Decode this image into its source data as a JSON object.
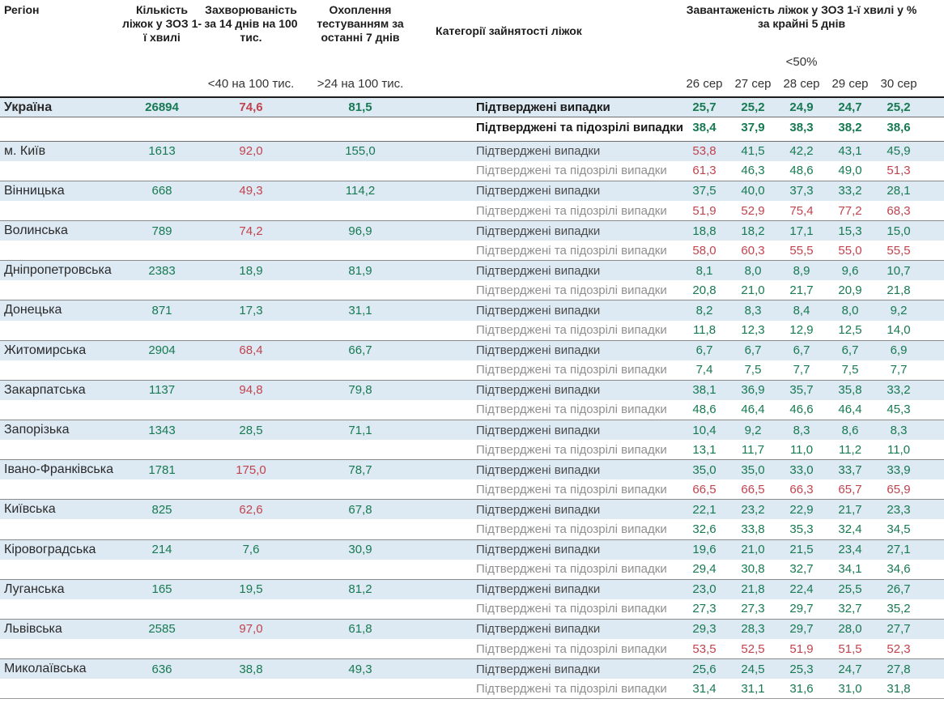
{
  "colors": {
    "good": "#177a52",
    "bad": "#c2434e",
    "row_highlight": "#dde9f3"
  },
  "chart_data": {
    "type": "table",
    "title": "Завантаженість ліжок у ЗОЗ 1-ї хвилі",
    "header": {
      "region": "Регіон",
      "beds": "Кількість ліжок у ЗОЗ 1-ї хвилі",
      "incidence": "Захворюваність за 14 днів на 100 тис.",
      "testing": "Охоплення тестуванням за останні 7 днів",
      "category": "Категорії зайнятості ліжок",
      "occupancy": "Завантаженість ліжок у ЗОЗ 1-ї хвилі у % за крайні 5 днів"
    },
    "thresholds": {
      "incidence": "<40 на 100 тис.",
      "testing": ">24 на 100 тис.",
      "occupancy": "<50%",
      "incidence_red_at": 40,
      "testing_green_above": 24,
      "occupancy_red_at": 50
    },
    "dates": [
      "26 сер",
      "27 сер",
      "28 сер",
      "29 сер",
      "30 сер"
    ],
    "category_labels": {
      "confirmed": "Підтверджені випадки",
      "confirmed_suspected": "Підтверджені та підозрілі випадки"
    },
    "rows": [
      {
        "region": "Україна",
        "is_total": true,
        "beds": "26894",
        "incidence": "74,6",
        "testing": "81,5",
        "confirmed": [
          "25,7",
          "25,2",
          "24,9",
          "24,7",
          "25,2"
        ],
        "confirmed_suspected": [
          "38,4",
          "37,9",
          "38,3",
          "38,2",
          "38,6"
        ]
      },
      {
        "region": "м. Київ",
        "is_total": false,
        "beds": "1613",
        "incidence": "92,0",
        "testing": "155,0",
        "confirmed": [
          "53,8",
          "41,5",
          "42,2",
          "43,1",
          "45,9"
        ],
        "confirmed_suspected": [
          "61,3",
          "46,3",
          "48,6",
          "49,0",
          "51,3"
        ]
      },
      {
        "region": "Вінницька",
        "is_total": false,
        "beds": "668",
        "incidence": "49,3",
        "testing": "114,2",
        "confirmed": [
          "37,5",
          "40,0",
          "37,3",
          "33,2",
          "28,1"
        ],
        "confirmed_suspected": [
          "51,9",
          "52,9",
          "75,4",
          "77,2",
          "68,3"
        ]
      },
      {
        "region": "Волинська",
        "is_total": false,
        "beds": "789",
        "incidence": "74,2",
        "testing": "96,9",
        "confirmed": [
          "18,8",
          "18,2",
          "17,1",
          "15,3",
          "15,0"
        ],
        "confirmed_suspected": [
          "58,0",
          "60,3",
          "55,5",
          "55,0",
          "55,5"
        ]
      },
      {
        "region": "Дніпропетровська",
        "is_total": false,
        "beds": "2383",
        "incidence": "18,9",
        "testing": "81,9",
        "confirmed": [
          "8,1",
          "8,0",
          "8,9",
          "9,6",
          "10,7"
        ],
        "confirmed_suspected": [
          "20,8",
          "21,0",
          "21,7",
          "20,9",
          "21,8"
        ]
      },
      {
        "region": "Донецька",
        "is_total": false,
        "beds": "871",
        "incidence": "17,3",
        "testing": "31,1",
        "confirmed": [
          "8,2",
          "8,3",
          "8,4",
          "8,0",
          "9,2"
        ],
        "confirmed_suspected": [
          "11,8",
          "12,3",
          "12,9",
          "12,5",
          "14,0"
        ]
      },
      {
        "region": "Житомирська",
        "is_total": false,
        "beds": "2904",
        "incidence": "68,4",
        "testing": "66,7",
        "confirmed": [
          "6,7",
          "6,7",
          "6,7",
          "6,7",
          "6,9"
        ],
        "confirmed_suspected": [
          "7,4",
          "7,5",
          "7,7",
          "7,5",
          "7,7"
        ]
      },
      {
        "region": "Закарпатська",
        "is_total": false,
        "beds": "1137",
        "incidence": "94,8",
        "testing": "79,8",
        "confirmed": [
          "38,1",
          "36,9",
          "35,7",
          "35,8",
          "33,2"
        ],
        "confirmed_suspected": [
          "48,6",
          "46,4",
          "46,6",
          "46,4",
          "45,3"
        ]
      },
      {
        "region": "Запорізька",
        "is_total": false,
        "beds": "1343",
        "incidence": "28,5",
        "testing": "71,1",
        "confirmed": [
          "10,4",
          "9,2",
          "8,3",
          "8,6",
          "8,3"
        ],
        "confirmed_suspected": [
          "13,1",
          "11,7",
          "11,0",
          "11,2",
          "11,0"
        ]
      },
      {
        "region": "Івано-Франківська",
        "is_total": false,
        "beds": "1781",
        "incidence": "175,0",
        "testing": "78,7",
        "confirmed": [
          "35,0",
          "35,0",
          "33,0",
          "33,7",
          "33,9"
        ],
        "confirmed_suspected": [
          "66,5",
          "66,5",
          "66,3",
          "65,7",
          "65,9"
        ]
      },
      {
        "region": "Київська",
        "is_total": false,
        "beds": "825",
        "incidence": "62,6",
        "testing": "67,8",
        "confirmed": [
          "22,1",
          "23,2",
          "22,9",
          "21,7",
          "23,3"
        ],
        "confirmed_suspected": [
          "32,6",
          "33,8",
          "35,3",
          "32,4",
          "34,5"
        ]
      },
      {
        "region": "Кіровоградська",
        "is_total": false,
        "beds": "214",
        "incidence": "7,6",
        "testing": "30,9",
        "confirmed": [
          "19,6",
          "21,0",
          "21,5",
          "23,4",
          "27,1"
        ],
        "confirmed_suspected": [
          "29,4",
          "30,8",
          "32,7",
          "34,1",
          "34,6"
        ]
      },
      {
        "region": "Луганська",
        "is_total": false,
        "beds": "165",
        "incidence": "19,5",
        "testing": "81,2",
        "confirmed": [
          "23,0",
          "21,8",
          "22,4",
          "25,5",
          "26,7"
        ],
        "confirmed_suspected": [
          "27,3",
          "27,3",
          "29,7",
          "32,7",
          "35,2"
        ]
      },
      {
        "region": "Львівська",
        "is_total": false,
        "beds": "2585",
        "incidence": "97,0",
        "testing": "61,8",
        "confirmed": [
          "29,3",
          "28,3",
          "29,7",
          "28,0",
          "27,7"
        ],
        "confirmed_suspected": [
          "53,5",
          "52,5",
          "51,9",
          "51,5",
          "52,3"
        ]
      },
      {
        "region": "Миколаївська",
        "is_total": false,
        "beds": "636",
        "incidence": "38,8",
        "testing": "49,3",
        "confirmed": [
          "25,6",
          "24,5",
          "25,3",
          "24,7",
          "27,8"
        ],
        "confirmed_suspected": [
          "31,4",
          "31,1",
          "31,6",
          "31,0",
          "31,8"
        ]
      }
    ]
  }
}
